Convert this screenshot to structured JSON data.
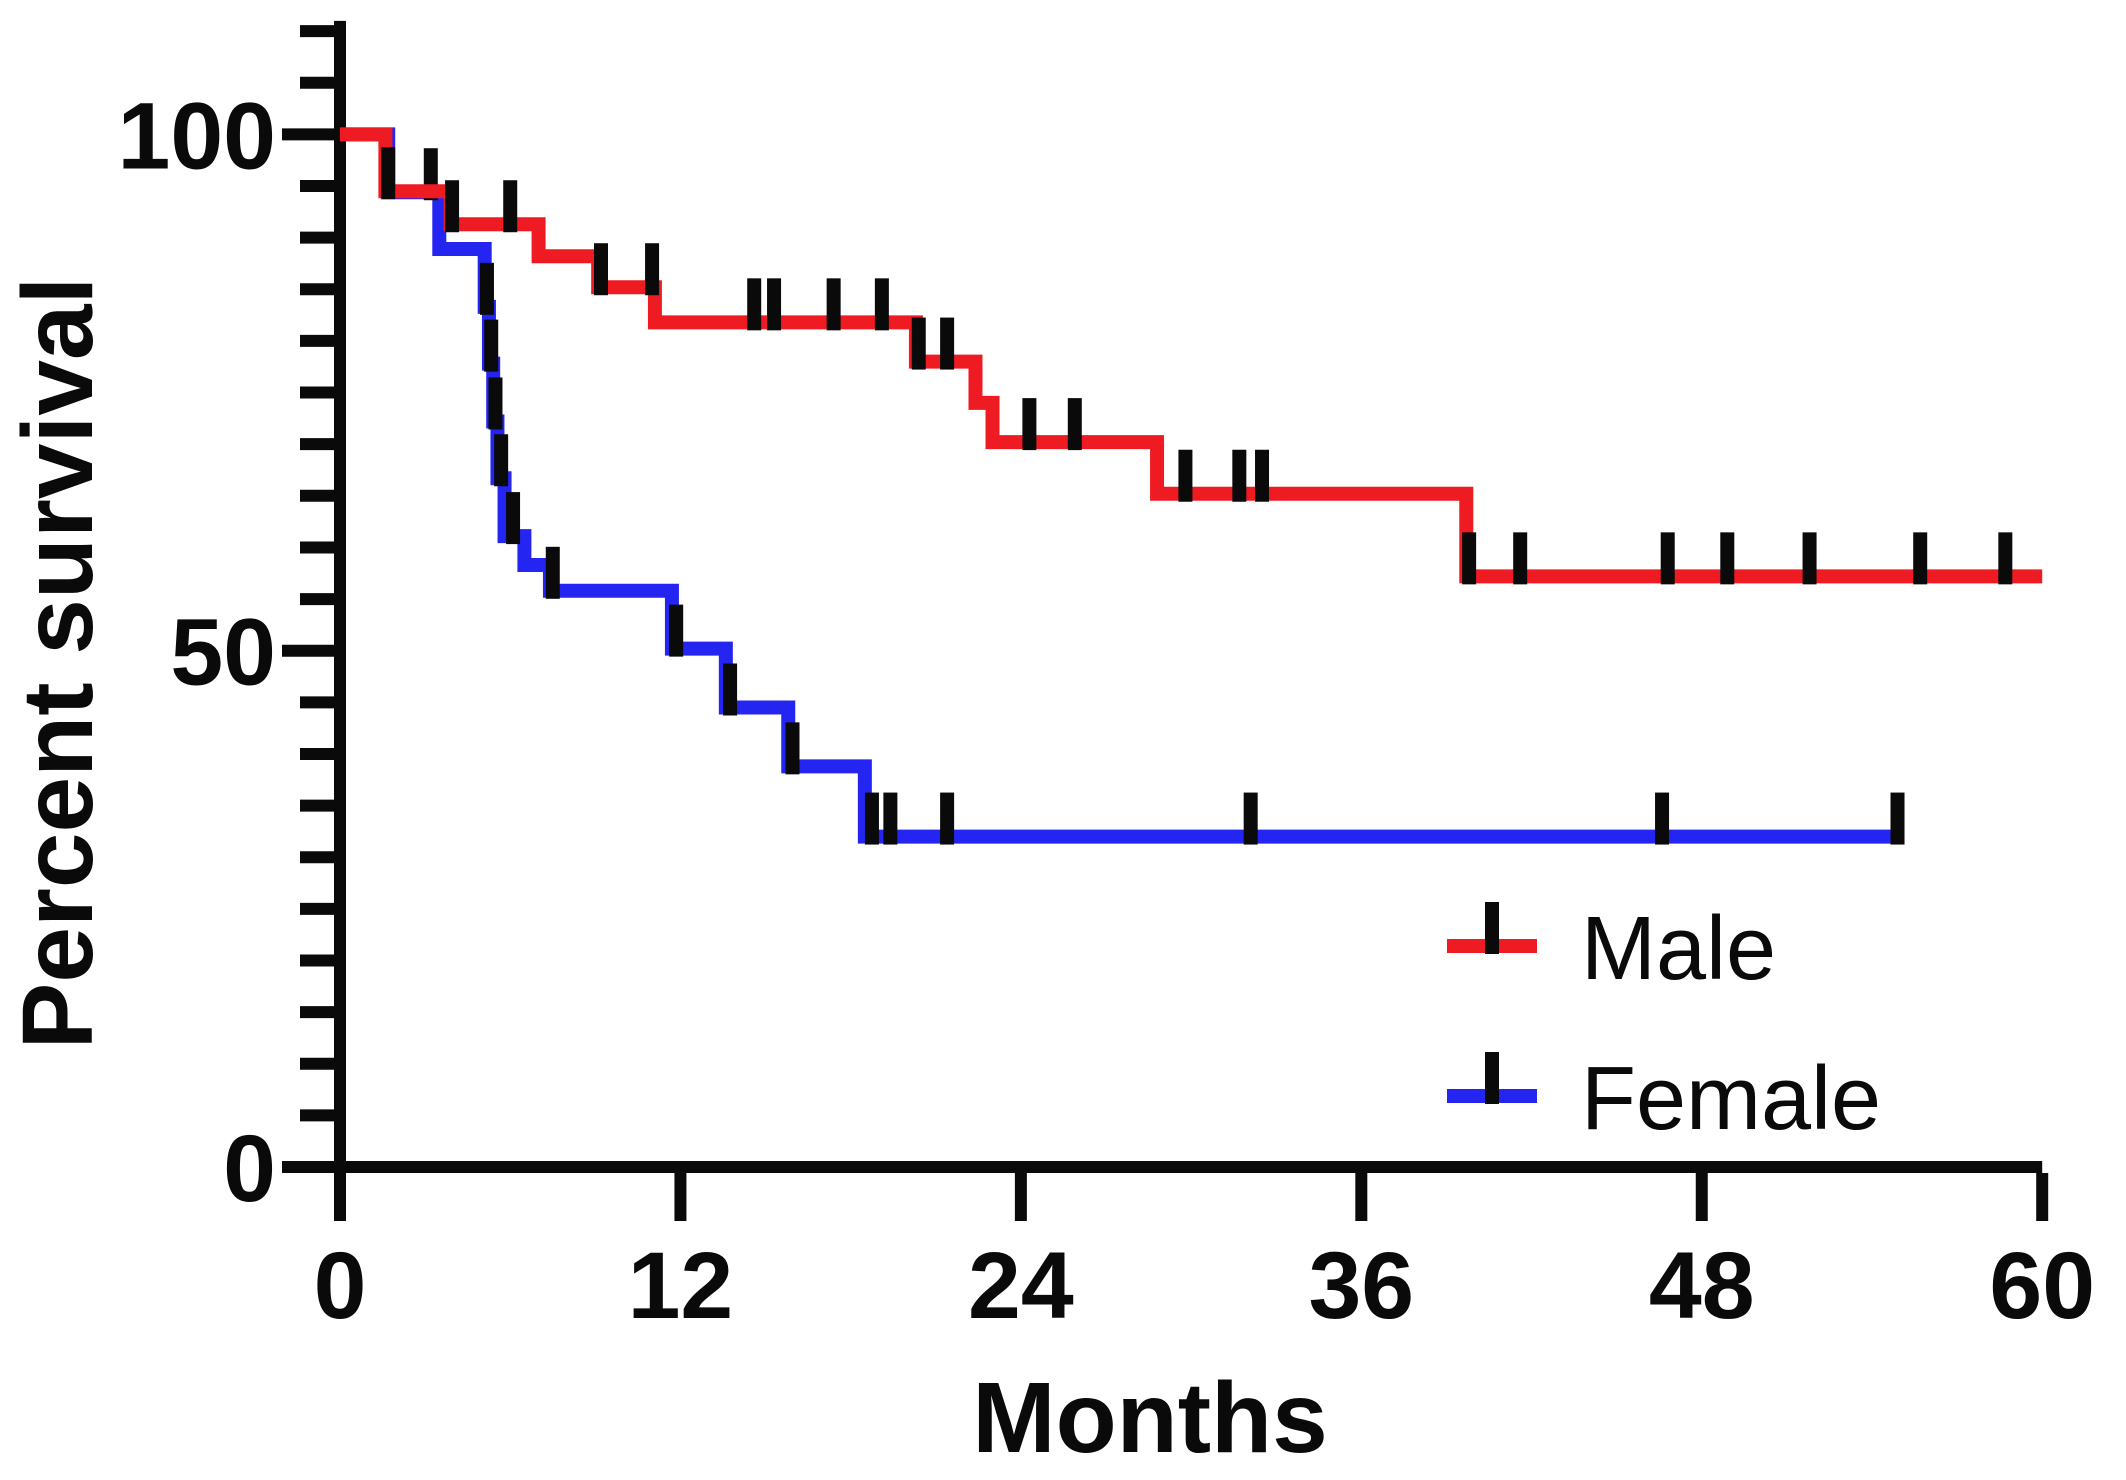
{
  "figure": {
    "background": "#ffffff",
    "axis_color": "#0a0a0a",
    "censor_mark_color": "#0a0a0a"
  },
  "chart_data": {
    "type": "line",
    "subtype": "kaplan-meier-survival-step",
    "title": "",
    "xlabel": "Months",
    "ylabel": "Percent survival",
    "xlim": [
      0,
      60
    ],
    "ylim": [
      0,
      110
    ],
    "x_ticks": [
      0,
      12,
      24,
      36,
      48,
      60
    ],
    "y_major_ticks": [
      0,
      50,
      100
    ],
    "y_minor_tick_step": 5,
    "y_minor_tick_max": 110,
    "grid": false,
    "legend_position": "inside-bottom-right",
    "series": [
      {
        "name": "Male",
        "color": "#EE1B23",
        "steps": [
          [
            0,
            100
          ],
          [
            1.6,
            94.5
          ],
          [
            3.9,
            91.3
          ],
          [
            7.0,
            88.2
          ],
          [
            9.1,
            85.2
          ],
          [
            11.1,
            81.8
          ],
          [
            20.3,
            78.0
          ],
          [
            22.4,
            74.0
          ],
          [
            23.0,
            70.2
          ],
          [
            28.8,
            65.2
          ],
          [
            39.7,
            57.2
          ]
        ],
        "end": 60,
        "censor_times": [
          1.7,
          3.95,
          6.0,
          9.2,
          11.0,
          14.6,
          15.3,
          17.4,
          19.1,
          20.4,
          21.4,
          24.3,
          25.9,
          29.8,
          31.7,
          32.5,
          39.8,
          41.6,
          46.8,
          48.9,
          51.8,
          55.7,
          58.7
        ]
      },
      {
        "name": "Female",
        "color": "#2525F2",
        "steps": [
          [
            0,
            100
          ],
          [
            1.7,
            94.4
          ],
          [
            3.5,
            88.9
          ],
          [
            5.1,
            83.3
          ],
          [
            5.25,
            77.8
          ],
          [
            5.4,
            72.2
          ],
          [
            5.55,
            66.7
          ],
          [
            5.8,
            61.1
          ],
          [
            6.5,
            58.3
          ],
          [
            7.4,
            55.8
          ],
          [
            11.7,
            50.2
          ],
          [
            13.6,
            44.5
          ],
          [
            15.8,
            38.8
          ],
          [
            18.5,
            32.0
          ]
        ],
        "end": 55.0,
        "censor_times": [
          3.2,
          5.18,
          5.33,
          5.48,
          5.68,
          6.1,
          7.5,
          11.85,
          13.75,
          15.95,
          18.75,
          19.4,
          21.4,
          32.1,
          46.6,
          54.9
        ]
      }
    ]
  }
}
